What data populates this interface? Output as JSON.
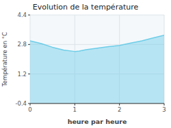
{
  "chart_data": {
    "type": "area",
    "title": "Evolution de la température",
    "x_label": "heure par heure",
    "y_label": "Température en °C",
    "x": [
      0,
      0.25,
      0.5,
      0.75,
      1.0,
      1.1,
      1.25,
      1.5,
      1.75,
      2.0,
      2.25,
      2.5,
      2.75,
      3.0
    ],
    "values": [
      3.0,
      2.85,
      2.65,
      2.5,
      2.42,
      2.44,
      2.52,
      2.6,
      2.68,
      2.75,
      2.88,
      3.0,
      3.15,
      3.3
    ],
    "color": "#6dcde8",
    "xlim": [
      0,
      3
    ],
    "ylim": [
      -0.4,
      4.4
    ],
    "xticks": [
      0,
      1,
      2,
      3
    ],
    "yticks": [
      -0.4,
      1.2,
      2.8,
      4.4
    ],
    "grid": true
  }
}
